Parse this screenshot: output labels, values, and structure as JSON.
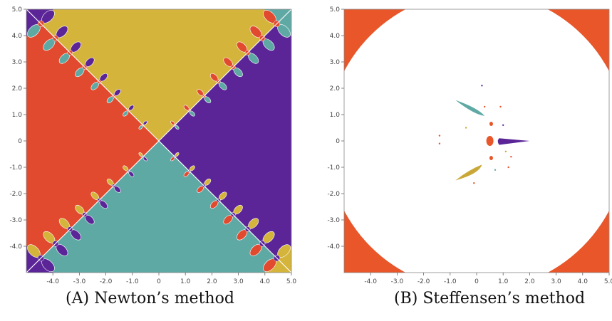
{
  "figures": [
    {
      "caption_label": "(A)",
      "caption_text": "Newton’s method",
      "axis_ticks_x": [
        "-4.0",
        "-3.0",
        "-2.0",
        "-1.0",
        "0",
        "1.0",
        "2.0",
        "3.0",
        "4.0",
        "5.0"
      ],
      "axis_ticks_y": [
        "5.0",
        "4.0",
        "3.0",
        "2.0",
        "1.0",
        "0",
        "-1.0",
        "-2.0",
        "-3.0",
        "-4.0"
      ],
      "xlim": [
        -5,
        5
      ],
      "ylim": [
        -5,
        5
      ],
      "colors": {
        "top": "#d4b43a",
        "bottom": "#5fa9a5",
        "left": "#e14a2e",
        "right": "#5b2598",
        "boundary": "#ffffff"
      }
    },
    {
      "caption_label": "(B)",
      "caption_text": "Steffensen’s method",
      "axis_ticks_x": [
        "-4.0",
        "-3.0",
        "-2.0",
        "-1.0",
        "0",
        "1.0",
        "2.0",
        "3.0",
        "4.0",
        "5.0"
      ],
      "axis_ticks_y": [
        "5.0",
        "4.0",
        "3.0",
        "2.0",
        "1.0",
        "0",
        "-1.0",
        "-2.0",
        "-3.0",
        "-4.0"
      ],
      "xlim": [
        -5,
        5
      ],
      "ylim": [
        -5,
        5
      ],
      "colors": {
        "corners": "#e8562a",
        "teal": "#5fa9a5",
        "purple": "#5b2598",
        "gold": "#c9a838",
        "background": "#ffffff"
      }
    }
  ]
}
